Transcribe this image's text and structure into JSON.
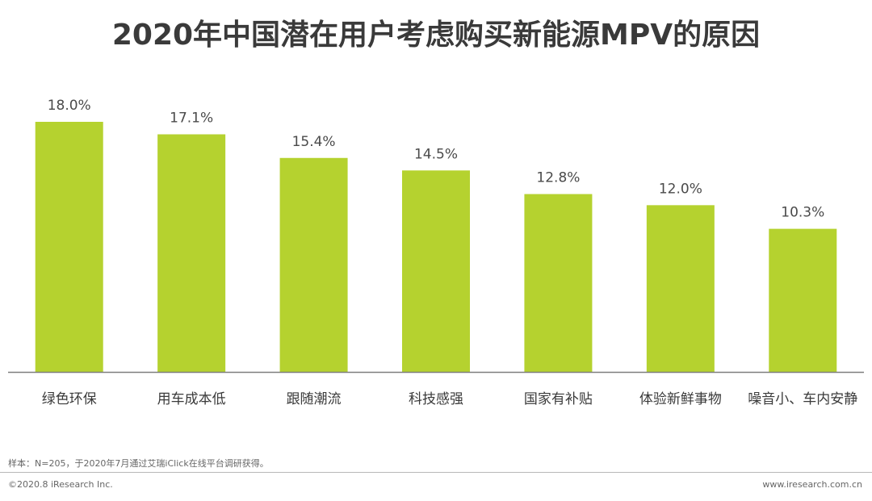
{
  "colors": {
    "bar": "#b5d22f",
    "axis": "#7f7f7f"
  },
  "chart_data": {
    "type": "bar",
    "title": "2020年中国潜在用户考虑购买新能源MPV的原因",
    "categories": [
      "绿色环保",
      "用车成本低",
      "跟随潮流",
      "科技感强",
      "国家有补贴",
      "体验新鲜事物",
      "噪音小、车内安静"
    ],
    "values": [
      18.0,
      17.1,
      15.4,
      14.5,
      12.8,
      12.0,
      10.3
    ],
    "value_labels": [
      "18.0%",
      "17.1%",
      "15.4%",
      "14.5%",
      "12.8%",
      "12.0%",
      "10.3%"
    ],
    "xlabel": "",
    "ylabel": "",
    "ylim": [
      0,
      18.0
    ],
    "unit": "%",
    "grid": false,
    "legend": "none"
  },
  "footer": {
    "note": "样本：N=205，于2020年7月通过艾瑞iClick在线平台调研获得。",
    "copyright": "©2020.8 iResearch Inc.",
    "site": "www.iresearch.com.cn"
  }
}
